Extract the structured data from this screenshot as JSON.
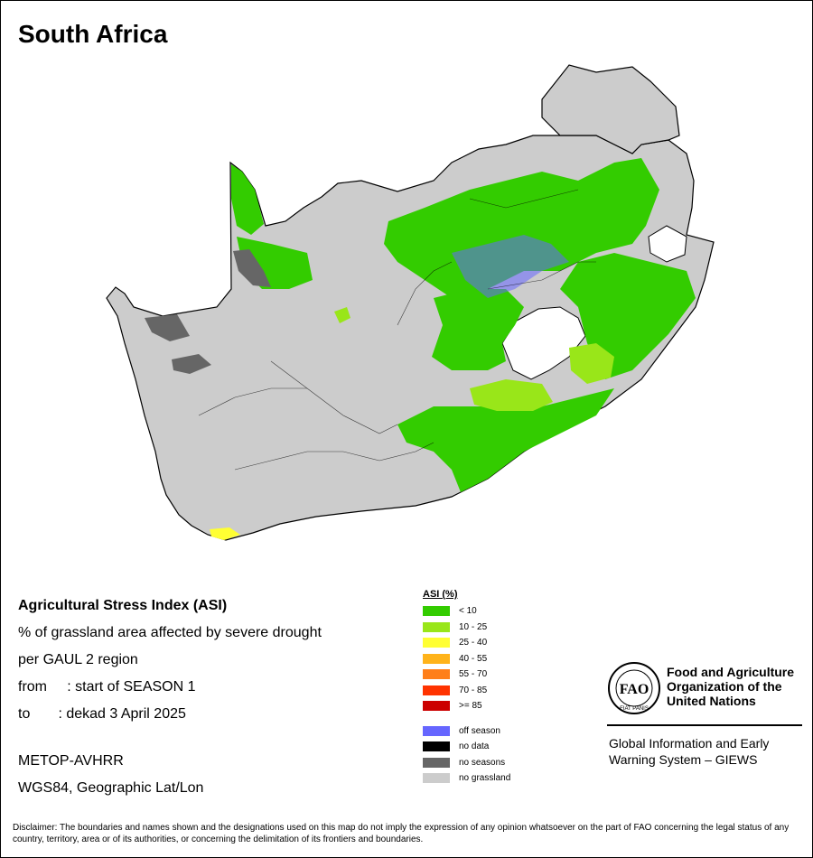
{
  "title": "South Africa",
  "info": {
    "heading": "Agricultural Stress Index (ASI)",
    "line1": "% of grassland area affected by severe drought",
    "line2": "per GAUL 2 region",
    "from": "from     : start of SEASON 1",
    "to": "to       : dekad 3 April 2025",
    "sensor": "METOP-AVHRR",
    "projection": "WGS84, Geographic Lat/Lon"
  },
  "legend": {
    "title": "ASI (%)",
    "classes": [
      {
        "label": "< 10",
        "color": "#33cc00"
      },
      {
        "label": "10 - 25",
        "color": "#99e619"
      },
      {
        "label": "25 - 40",
        "color": "#ffff33"
      },
      {
        "label": "40 - 55",
        "color": "#ffb31a"
      },
      {
        "label": "55 - 70",
        "color": "#ff7f19"
      },
      {
        "label": "70 - 85",
        "color": "#ff3300"
      },
      {
        "label": ">= 85",
        "color": "#cc0000"
      }
    ],
    "other": [
      {
        "label": "off season",
        "color": "#6666ff"
      },
      {
        "label": "no data",
        "color": "#000000"
      },
      {
        "label": "no seasons",
        "color": "#666666"
      },
      {
        "label": "no grassland",
        "color": "#cccccc"
      }
    ]
  },
  "fao": {
    "logo_text": "FAO",
    "logo_motto": "FIAT PANIS",
    "org_line1": "Food and Agriculture",
    "org_line2": "Organization of the",
    "org_line3": "United Nations",
    "giews_line1": "Global Information and Early",
    "giews_line2": "Warning System – GIEWS"
  },
  "disclaimer": "Disclaimer: The boundaries and names shown and the designations used on this map do not imply the expression of any opinion whatsoever on the part of FAO concerning the legal status of any country, territory, area or of its authorities, or concerning the delimitation of its frontiers and boundaries."
}
